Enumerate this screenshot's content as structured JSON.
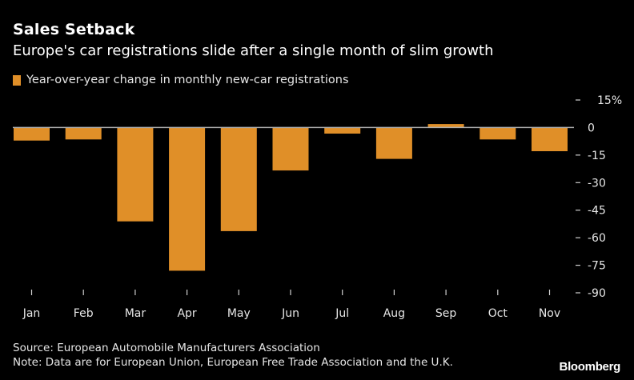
{
  "header": {
    "title": "Sales Setback",
    "subtitle": "Europe's car registrations slide after a single month of slim growth"
  },
  "footer": {
    "source": "Source: European Automobile Manufacturers Association",
    "note": "Note: Data are for European Union, European Free Trade Association and the U.K.",
    "brand": "Bloomberg"
  },
  "chart_data": {
    "type": "bar",
    "title": "Sales Setback",
    "subtitle": "Europe's car registrations slide after a single month of slim growth",
    "xlabel": "",
    "ylabel": "",
    "legend": {
      "position": "top-left",
      "entries": [
        "Year-over-year change in monthly new-car registrations"
      ]
    },
    "categories": [
      "Jan",
      "Feb",
      "Mar",
      "Apr",
      "May",
      "Jun",
      "Jul",
      "Aug",
      "Sep",
      "Oct",
      "Nov"
    ],
    "series": [
      {
        "name": "Year-over-year change in monthly new-car registrations",
        "color": "#e08f28",
        "values": [
          -7.1,
          -6.5,
          -51.1,
          -78.0,
          -56.4,
          -23.4,
          -3.3,
          -17.1,
          1.9,
          -6.5,
          -12.9
        ]
      }
    ],
    "ylim": [
      -90,
      15
    ],
    "yticks": [
      15,
      0,
      -15,
      -30,
      -45,
      -60,
      -75,
      -90
    ],
    "ytick_labels": [
      "15%",
      "0",
      "-15",
      "-30",
      "-45",
      "-60",
      "-75",
      "-90"
    ],
    "y_axis_side": "right",
    "grid": false,
    "zero_line_color": "#b0b0b0"
  }
}
